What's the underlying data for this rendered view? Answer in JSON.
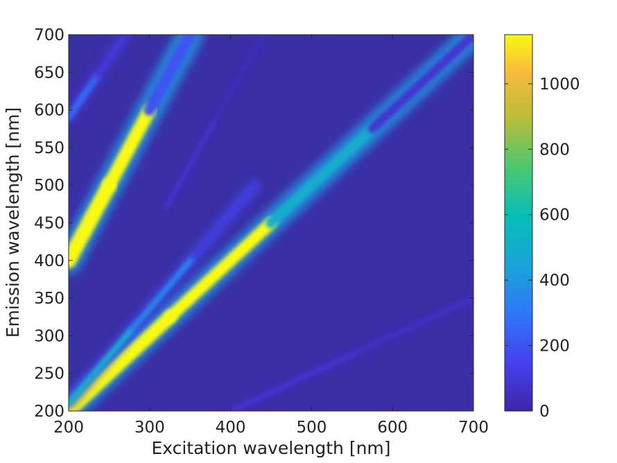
{
  "chart_data": {
    "type": "heatmap",
    "title": "",
    "xlabel": "Excitation wavelength [nm]",
    "ylabel": "Emission wavelength [nm]",
    "xlim": [
      200,
      700
    ],
    "ylim": [
      200,
      700
    ],
    "xticks": [
      "200",
      "300",
      "400",
      "500",
      "600",
      "700"
    ],
    "yticks": [
      "200",
      "250",
      "300",
      "350",
      "400",
      "450",
      "500",
      "550",
      "600",
      "650",
      "700"
    ],
    "colorbar": {
      "range": [
        0,
        1150
      ],
      "ticks": [
        "0",
        "200",
        "400",
        "600",
        "800",
        "1000"
      ],
      "colormap": "parula"
    },
    "background_value": 0,
    "features": [
      {
        "name_ref": "rayleigh-first-order",
        "x": [
          200,
          700
        ],
        "y": [
          200,
          700
        ],
        "peak_values": [
          1150,
          1150,
          500,
          80
        ]
      },
      {
        "name_ref": "raman-first-order",
        "x": [
          200,
          430
        ],
        "y": [
          210,
          500
        ],
        "peak_values": [
          500,
          350,
          100
        ]
      },
      {
        "name_ref": "rayleigh-second-order",
        "x": [
          200,
          350
        ],
        "y": [
          400,
          700
        ],
        "peak_values": [
          1150,
          1150,
          200
        ]
      },
      {
        "name_ref": "raman-second-order",
        "x": [
          200,
          270
        ],
        "y": [
          590,
          700
        ],
        "peak_values": [
          250,
          100
        ]
      },
      {
        "name_ref": "faint-second-order",
        "x": [
          320,
          440
        ],
        "y": [
          470,
          700
        ],
        "peak_values": [
          80,
          40
        ]
      },
      {
        "name_ref": "half-order-line",
        "x": [
          400,
          700
        ],
        "y": [
          200,
          350
        ],
        "peak_values": [
          90,
          60
        ]
      }
    ],
    "colors": {
      "background": "#3b2fa6",
      "low": "#3f46c8",
      "mid": "#1aa4d8",
      "high": "#fbe61f",
      "peak": "#f4b23a"
    }
  }
}
